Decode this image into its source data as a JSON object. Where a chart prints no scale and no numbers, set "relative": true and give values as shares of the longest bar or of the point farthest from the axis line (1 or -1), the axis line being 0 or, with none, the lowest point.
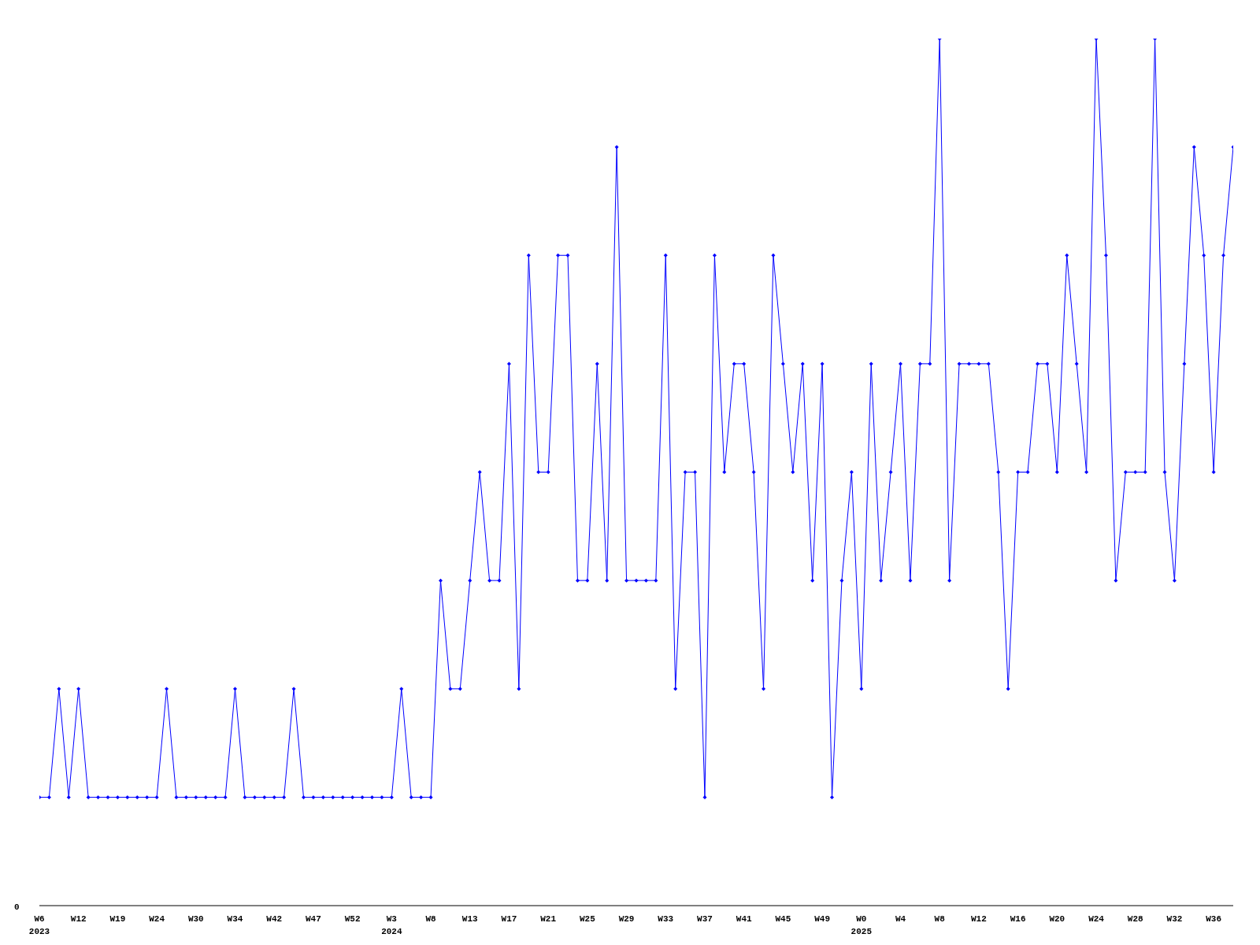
{
  "chart_data": {
    "type": "line",
    "relative": true,
    "marker": "diamond",
    "grid": false,
    "legend": false,
    "categories": [
      "W6\n2023",
      null,
      null,
      null,
      "W12",
      null,
      null,
      null,
      "W19",
      null,
      null,
      null,
      "W24",
      null,
      null,
      null,
      "W30",
      null,
      null,
      null,
      "W34",
      null,
      null,
      null,
      "W42",
      null,
      null,
      null,
      "W47",
      null,
      null,
      null,
      "W52",
      null,
      null,
      null,
      "W3\n2024",
      null,
      null,
      null,
      "W8",
      null,
      null,
      null,
      "W13",
      null,
      null,
      null,
      "W17",
      null,
      null,
      null,
      "W21",
      null,
      null,
      null,
      "W25",
      null,
      null,
      null,
      "W29",
      null,
      null,
      null,
      "W33",
      null,
      null,
      null,
      "W37",
      null,
      null,
      null,
      "W41",
      null,
      null,
      null,
      "W45",
      null,
      null,
      null,
      "W49",
      null,
      null,
      null,
      "W0\n2025",
      null,
      null,
      null,
      "W4",
      null,
      null,
      null,
      "W8",
      null,
      null,
      null,
      "W12",
      null,
      null,
      null,
      "W16",
      null,
      null,
      null,
      "W20",
      null,
      null,
      null,
      "W24",
      null,
      null,
      null,
      "W28",
      null,
      null,
      null,
      "W32",
      null,
      null,
      null,
      "W36",
      null,
      null
    ],
    "series": [
      {
        "color": "#0000ff",
        "values": [
          0.125,
          0.125,
          0.25,
          0.125,
          0.25,
          0.125,
          0.125,
          0.125,
          0.125,
          0.125,
          0.125,
          0.125,
          0.125,
          0.25,
          0.125,
          0.125,
          0.125,
          0.125,
          0.125,
          0.125,
          0.25,
          0.125,
          0.125,
          0.125,
          0.125,
          0.125,
          0.25,
          0.125,
          0.125,
          0.125,
          0.125,
          0.125,
          0.125,
          0.125,
          0.125,
          0.125,
          0.125,
          0.25,
          0.125,
          0.125,
          0.125,
          0.375,
          0.25,
          0.25,
          0.375,
          0.5,
          0.375,
          0.375,
          0.625,
          0.25,
          0.75,
          0.5,
          0.5,
          0.75,
          0.75,
          0.375,
          0.375,
          0.625,
          0.375,
          0.875,
          0.375,
          0.375,
          0.375,
          0.375,
          0.75,
          0.25,
          0.5,
          0.5,
          0.125,
          0.75,
          0.5,
          0.625,
          0.625,
          0.5,
          0.25,
          0.75,
          0.625,
          0.5,
          0.625,
          0.375,
          0.625,
          0.125,
          0.375,
          0.5,
          0.25,
          0.625,
          0.375,
          0.5,
          0.625,
          0.375,
          0.625,
          0.625,
          1,
          0.375,
          0.625,
          0.625,
          0.625,
          0.625,
          0.5,
          0.25,
          0.5,
          0.5,
          0.625,
          0.625,
          0.5,
          0.75,
          0.625,
          0.5,
          1,
          0.75,
          0.375,
          0.5,
          0.5,
          0.5,
          1,
          0.5,
          0.375,
          0.625,
          0.875,
          0.75,
          0.5,
          0.75,
          0.875
        ]
      }
    ],
    "annotations": [
      "0"
    ]
  }
}
